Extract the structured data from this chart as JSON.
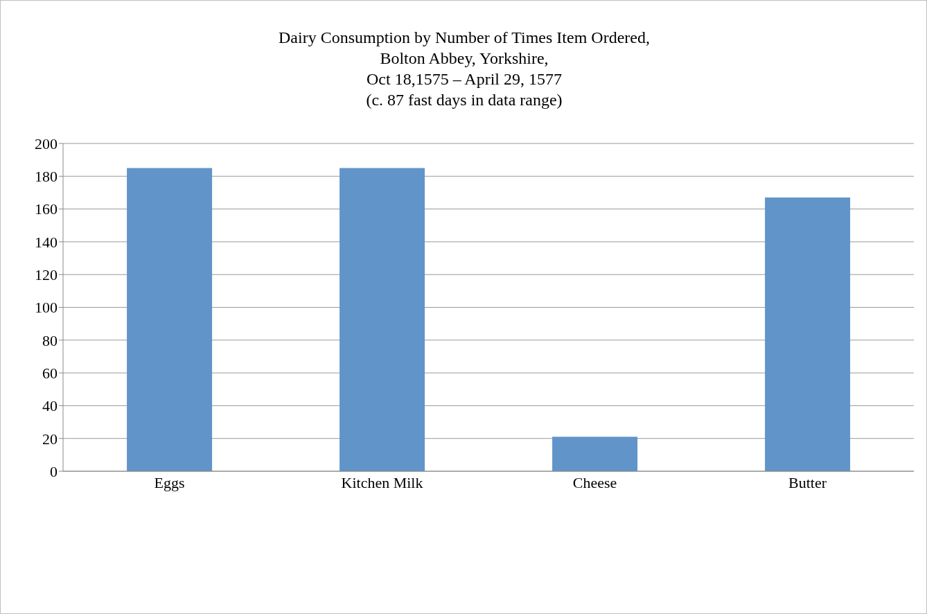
{
  "chart_data": {
    "type": "bar",
    "title": "Dairy Consumption by Number of Times Item Ordered,\nBolton Abbey, Yorkshire,\nOct 18,1575 – April 29, 1577\n(c. 87 fast days in data range)",
    "categories": [
      "Eggs",
      "Kitchen Milk",
      "Cheese",
      "Butter"
    ],
    "values": [
      185,
      185,
      21,
      167
    ],
    "color": "#6194c9",
    "ylim": [
      0,
      200
    ],
    "yticks": [
      0,
      20,
      40,
      60,
      80,
      100,
      120,
      140,
      160,
      180,
      200
    ],
    "grid": "y"
  }
}
